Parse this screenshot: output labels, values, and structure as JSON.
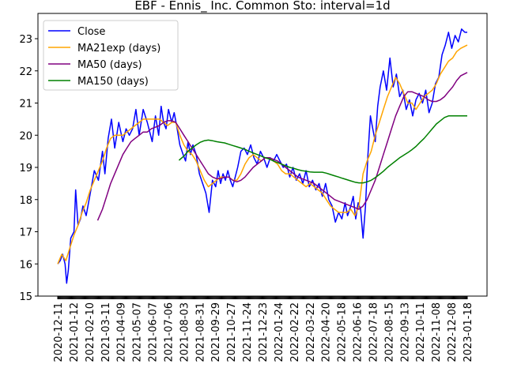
{
  "chart_data": {
    "type": "line",
    "title": "EBF - Ennis_ Inc. Common Sto: interval=1d",
    "xlabel": "",
    "ylabel": "",
    "ylim": [
      15,
      23.5
    ],
    "y_ticks": [
      15,
      16,
      17,
      18,
      19,
      20,
      21,
      22,
      23
    ],
    "x_ticks": [
      "2020-12-11",
      "2021-01-12",
      "2021-02-10",
      "2021-03-11",
      "2021-04-09",
      "2021-05-07",
      "2021-06-07",
      "2021-07-06",
      "2021-08-03",
      "2021-08-31",
      "2021-09-29",
      "2021-10-27",
      "2021-11-24",
      "2021-12-23",
      "2022-01-24",
      "2022-02-22",
      "2022-03-22",
      "2022-04-20",
      "2022-05-18",
      "2022-06-16",
      "2022-07-18",
      "2022-08-15",
      "2022-09-13",
      "2022-10-11",
      "2022-11-08",
      "2022-12-08",
      "2023-01-18"
    ],
    "legend_position": "top-left",
    "grid": false,
    "series": [
      {
        "name": "Close",
        "color": "#0000ff",
        "x": [
          0,
          3,
          6,
          9,
          11,
          13,
          16,
          20,
          22,
          25,
          28,
          31,
          35,
          40,
          45,
          50,
          55,
          58,
          62,
          66,
          70,
          75,
          80,
          84,
          88,
          92,
          96,
          100,
          105,
          110,
          113,
          116,
          120,
          124,
          127,
          130,
          133,
          136,
          140,
          143,
          146,
          150,
          154,
          157,
          160,
          163,
          166,
          170,
          174,
          178,
          182,
          186,
          190,
          194,
          197,
          200,
          203,
          206,
          209,
          212,
          215,
          218,
          221,
          225,
          229,
          233,
          237,
          241,
          245,
          249,
          253,
          257,
          261,
          265,
          269,
          273,
          277,
          281,
          285,
          289,
          293,
          297,
          301,
          305,
          309,
          313,
          317,
          321,
          325,
          329,
          333,
          337,
          341,
          345,
          349,
          353,
          356,
          360,
          363,
          366,
          369,
          372,
          375,
          378,
          381,
          384,
          387,
          390,
          393,
          396,
          400,
          404,
          408,
          412,
          416,
          420,
          424,
          428,
          432,
          436,
          440,
          444,
          448,
          452,
          456,
          460,
          464,
          468,
          472,
          476,
          480,
          484,
          488,
          492,
          496,
          500,
          503
        ],
        "values": [
          16.0,
          16.1,
          16.3,
          16.0,
          15.4,
          15.8,
          16.8,
          17.0,
          18.3,
          17.2,
          17.4,
          17.8,
          17.5,
          18.2,
          18.9,
          18.6,
          19.5,
          18.8,
          19.9,
          20.5,
          19.6,
          20.4,
          19.8,
          20.2,
          20.0,
          20.2,
          20.8,
          20.0,
          20.8,
          20.4,
          20.1,
          19.8,
          20.6,
          20.0,
          20.9,
          20.4,
          20.2,
          20.8,
          20.4,
          20.7,
          20.3,
          19.7,
          19.4,
          19.2,
          19.8,
          19.4,
          19.7,
          19.4,
          18.8,
          18.5,
          18.2,
          17.6,
          18.6,
          18.4,
          18.9,
          18.5,
          18.8,
          18.6,
          18.9,
          18.6,
          18.4,
          18.7,
          19.0,
          19.5,
          19.6,
          19.4,
          19.7,
          19.3,
          19.1,
          19.5,
          19.3,
          19.0,
          19.3,
          19.2,
          19.4,
          19.2,
          19.0,
          19.1,
          18.7,
          19.0,
          18.6,
          18.8,
          18.5,
          18.9,
          18.4,
          18.6,
          18.3,
          18.5,
          18.1,
          18.5,
          18.0,
          17.8,
          17.3,
          17.6,
          17.4,
          17.9,
          17.5,
          17.8,
          18.1,
          17.4,
          17.9,
          17.7,
          16.8,
          17.8,
          19.4,
          20.6,
          20.2,
          19.8,
          20.9,
          21.5,
          22.0,
          21.4,
          22.4,
          21.5,
          21.9,
          21.2,
          21.4,
          20.8,
          21.1,
          20.6,
          21.1,
          21.3,
          21.0,
          21.4,
          20.7,
          21.0,
          21.6,
          21.8,
          22.5,
          22.8,
          23.2,
          22.7,
          23.1,
          22.9,
          23.3,
          23.2,
          23.2
        ]
      },
      {
        "name": "MA21exp (days)",
        "color": "#ffa500",
        "x": [
          0,
          5,
          10,
          15,
          20,
          25,
          30,
          35,
          40,
          45,
          50,
          55,
          60,
          65,
          70,
          75,
          80,
          85,
          90,
          95,
          100,
          105,
          110,
          115,
          120,
          125,
          130,
          135,
          140,
          145,
          150,
          155,
          160,
          165,
          170,
          175,
          180,
          185,
          190,
          195,
          200,
          205,
          210,
          215,
          220,
          225,
          230,
          235,
          240,
          245,
          250,
          255,
          260,
          265,
          270,
          275,
          280,
          285,
          290,
          295,
          300,
          305,
          310,
          315,
          320,
          325,
          330,
          335,
          340,
          345,
          350,
          355,
          360,
          365,
          370,
          375,
          380,
          385,
          390,
          395,
          400,
          405,
          410,
          415,
          420,
          425,
          430,
          435,
          440,
          445,
          450,
          455,
          460,
          465,
          470,
          475,
          480,
          485,
          490,
          495,
          503
        ],
        "values": [
          16.0,
          16.3,
          16.1,
          16.5,
          16.9,
          17.2,
          17.6,
          17.9,
          18.3,
          18.6,
          18.9,
          19.2,
          19.6,
          19.9,
          20.0,
          20.0,
          20.0,
          20.1,
          20.2,
          20.3,
          20.4,
          20.5,
          20.5,
          20.5,
          20.5,
          20.5,
          20.4,
          20.3,
          20.4,
          20.4,
          20.0,
          19.7,
          19.5,
          19.4,
          19.2,
          18.9,
          18.6,
          18.4,
          18.5,
          18.6,
          18.7,
          18.7,
          18.7,
          18.6,
          18.6,
          18.8,
          19.1,
          19.3,
          19.4,
          19.3,
          19.2,
          19.3,
          19.3,
          19.2,
          19.1,
          18.9,
          18.8,
          18.8,
          18.7,
          18.6,
          18.5,
          18.4,
          18.5,
          18.4,
          18.3,
          18.2,
          18.0,
          17.8,
          17.7,
          17.6,
          17.6,
          17.6,
          17.7,
          17.5,
          17.8,
          18.8,
          19.2,
          19.5,
          20.0,
          20.4,
          20.8,
          21.2,
          21.5,
          21.8,
          21.6,
          21.3,
          21.0,
          21.0,
          20.8,
          21.0,
          21.2,
          21.3,
          21.4,
          21.6,
          21.9,
          22.1,
          22.3,
          22.4,
          22.6,
          22.7,
          22.8
        ]
      },
      {
        "name": "MA50 (days)",
        "color": "#800080",
        "x": [
          49,
          55,
          60,
          65,
          70,
          75,
          80,
          85,
          90,
          95,
          100,
          105,
          110,
          115,
          120,
          125,
          130,
          135,
          140,
          145,
          150,
          155,
          160,
          165,
          170,
          175,
          180,
          185,
          190,
          195,
          200,
          205,
          210,
          215,
          220,
          225,
          230,
          235,
          240,
          245,
          250,
          255,
          260,
          265,
          270,
          275,
          280,
          285,
          290,
          295,
          300,
          305,
          310,
          315,
          320,
          325,
          330,
          335,
          340,
          345,
          350,
          355,
          360,
          365,
          370,
          375,
          380,
          385,
          390,
          395,
          400,
          405,
          410,
          415,
          420,
          425,
          430,
          435,
          440,
          445,
          450,
          455,
          460,
          465,
          470,
          475,
          480,
          485,
          490,
          495,
          503
        ],
        "values": [
          17.35,
          17.7,
          18.1,
          18.5,
          18.8,
          19.1,
          19.4,
          19.6,
          19.8,
          19.9,
          20.0,
          20.1,
          20.1,
          20.2,
          20.25,
          20.3,
          20.4,
          20.45,
          20.45,
          20.4,
          20.2,
          20.0,
          19.8,
          19.6,
          19.4,
          19.2,
          19.0,
          18.8,
          18.7,
          18.65,
          18.65,
          18.7,
          18.7,
          18.6,
          18.55,
          18.6,
          18.7,
          18.85,
          19.0,
          19.1,
          19.2,
          19.3,
          19.3,
          19.25,
          19.2,
          19.1,
          19.0,
          18.9,
          18.8,
          18.7,
          18.65,
          18.6,
          18.55,
          18.5,
          18.4,
          18.3,
          18.2,
          18.1,
          18.0,
          17.95,
          17.9,
          17.85,
          17.8,
          17.75,
          17.7,
          17.8,
          18.0,
          18.3,
          18.6,
          19.0,
          19.4,
          19.8,
          20.2,
          20.6,
          20.9,
          21.2,
          21.35,
          21.35,
          21.3,
          21.25,
          21.2,
          21.1,
          21.05,
          21.05,
          21.1,
          21.2,
          21.35,
          21.5,
          21.7,
          21.85,
          21.95
        ]
      },
      {
        "name": "MA150 (days)",
        "color": "#008000",
        "x": [
          149,
          155,
          160,
          165,
          170,
          175,
          180,
          185,
          190,
          195,
          200,
          205,
          210,
          215,
          220,
          225,
          230,
          235,
          240,
          245,
          250,
          255,
          260,
          265,
          270,
          275,
          280,
          285,
          290,
          295,
          300,
          305,
          310,
          315,
          320,
          325,
          330,
          335,
          340,
          345,
          350,
          355,
          360,
          365,
          370,
          375,
          380,
          385,
          390,
          395,
          400,
          405,
          410,
          415,
          420,
          425,
          430,
          435,
          440,
          445,
          450,
          455,
          460,
          465,
          470,
          475,
          480,
          485,
          490,
          495,
          503
        ],
        "values": [
          19.22,
          19.35,
          19.5,
          19.6,
          19.7,
          19.78,
          19.83,
          19.85,
          19.83,
          19.8,
          19.78,
          19.76,
          19.72,
          19.68,
          19.64,
          19.6,
          19.56,
          19.5,
          19.45,
          19.4,
          19.35,
          19.3,
          19.26,
          19.2,
          19.15,
          19.1,
          19.05,
          19.0,
          18.97,
          18.93,
          18.9,
          18.88,
          18.86,
          18.85,
          18.85,
          18.85,
          18.82,
          18.78,
          18.74,
          18.7,
          18.66,
          18.62,
          18.58,
          18.54,
          18.52,
          18.52,
          18.55,
          18.6,
          18.68,
          18.78,
          18.88,
          19.0,
          19.1,
          19.2,
          19.3,
          19.38,
          19.46,
          19.55,
          19.65,
          19.78,
          19.9,
          20.05,
          20.2,
          20.35,
          20.45,
          20.55,
          20.6,
          20.6,
          20.6,
          20.6,
          20.6
        ]
      }
    ]
  }
}
